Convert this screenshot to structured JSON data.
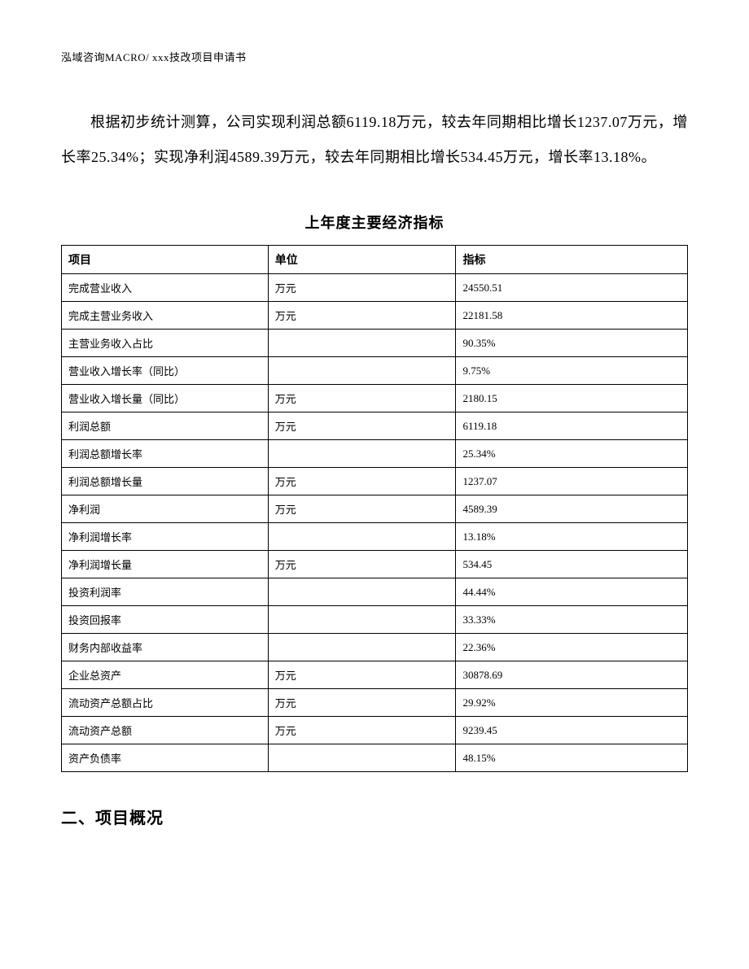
{
  "header": {
    "text": "泓域咨询MACRO/   xxx技改项目申请书"
  },
  "body_text": "根据初步统计测算，公司实现利润总额6119.18万元，较去年同期相比增长1237.07万元，增长率25.34%；实现净利润4589.39万元，较去年同期相比增长534.45万元，增长率13.18%。",
  "table": {
    "title": "上年度主要经济指标",
    "headers": {
      "item": "项目",
      "unit": "单位",
      "value": "指标"
    },
    "rows": [
      {
        "item": "完成营业收入",
        "unit": "万元",
        "value": "24550.51"
      },
      {
        "item": "完成主营业务收入",
        "unit": "万元",
        "value": "22181.58"
      },
      {
        "item": "主营业务收入占比",
        "unit": "",
        "value": "90.35%"
      },
      {
        "item": "营业收入增长率（同比）",
        "unit": "",
        "value": "9.75%"
      },
      {
        "item": "营业收入增长量（同比）",
        "unit": "万元",
        "value": "2180.15"
      },
      {
        "item": "利润总额",
        "unit": "万元",
        "value": "6119.18"
      },
      {
        "item": "利润总额增长率",
        "unit": "",
        "value": "25.34%"
      },
      {
        "item": "利润总额增长量",
        "unit": "万元",
        "value": "1237.07"
      },
      {
        "item": "净利润",
        "unit": "万元",
        "value": "4589.39"
      },
      {
        "item": "净利润增长率",
        "unit": "",
        "value": "13.18%"
      },
      {
        "item": "净利润增长量",
        "unit": "万元",
        "value": "534.45"
      },
      {
        "item": "投资利润率",
        "unit": "",
        "value": "44.44%"
      },
      {
        "item": "投资回报率",
        "unit": "",
        "value": "33.33%"
      },
      {
        "item": "财务内部收益率",
        "unit": "",
        "value": "22.36%"
      },
      {
        "item": "企业总资产",
        "unit": "万元",
        "value": "30878.69"
      },
      {
        "item": "流动资产总额占比",
        "unit": "万元",
        "value": "29.92%"
      },
      {
        "item": "流动资产总额",
        "unit": "万元",
        "value": "9239.45"
      },
      {
        "item": "资产负债率",
        "unit": "",
        "value": "48.15%"
      }
    ]
  },
  "section_heading": "二、项目概况"
}
